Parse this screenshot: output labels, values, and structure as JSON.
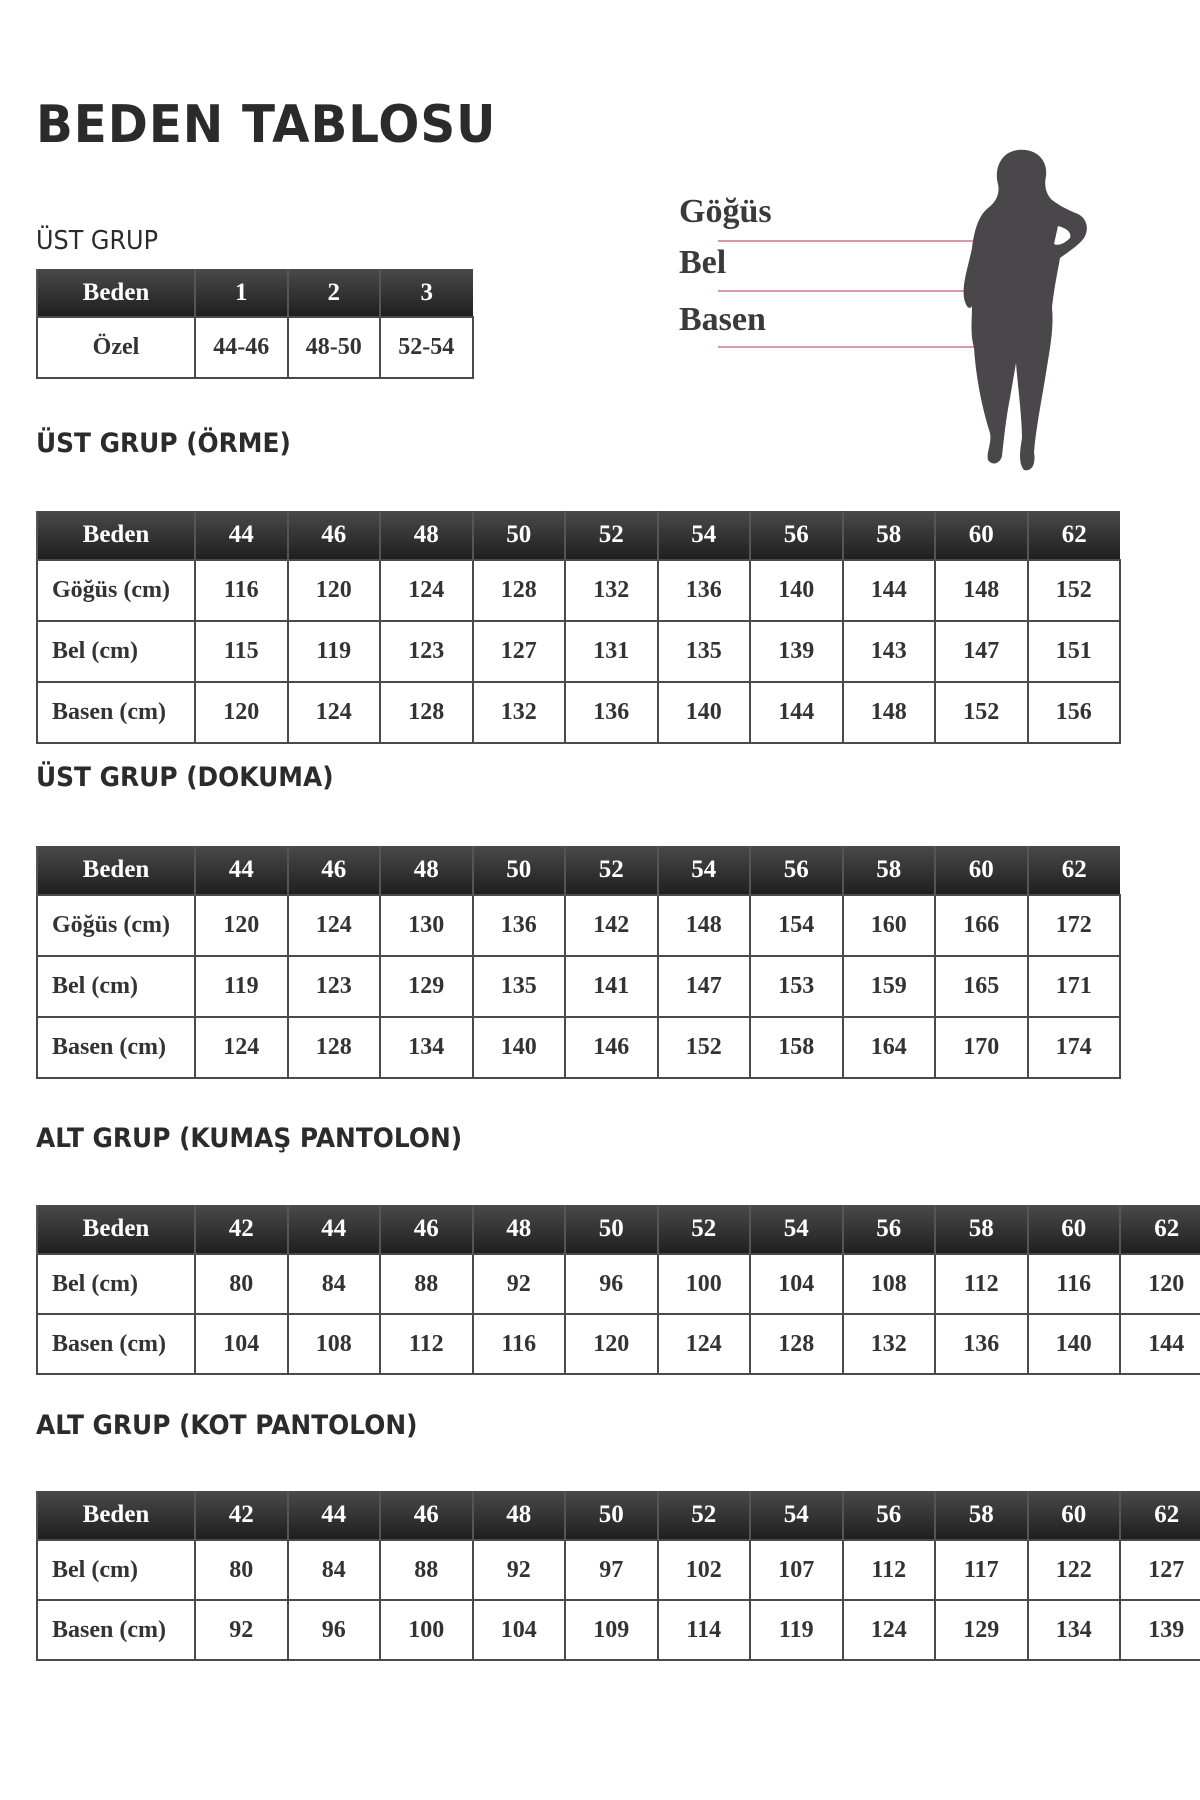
{
  "title": "BEDEN TABLOSU",
  "colors": {
    "header_bg": "#2a2a2a",
    "measure_line": "#d89aa3",
    "silhouette": "#4a474b"
  },
  "figure": {
    "icon": "female-body-silhouette",
    "labels": [
      "Göğüs",
      "Bel",
      "Basen"
    ]
  },
  "tables": [
    {
      "heading": "ÜST GRUP",
      "columns": [
        "Beden",
        "1",
        "2",
        "3"
      ],
      "rows": [
        [
          "Özel",
          "44-46",
          "48-50",
          "52-54"
        ]
      ]
    },
    {
      "heading": "ÜST GRUP (ÖRME)",
      "columns": [
        "Beden",
        "44",
        "46",
        "48",
        "50",
        "52",
        "54",
        "56",
        "58",
        "60",
        "62"
      ],
      "rows": [
        [
          "Göğüs (cm)",
          "116",
          "120",
          "124",
          "128",
          "132",
          "136",
          "140",
          "144",
          "148",
          "152"
        ],
        [
          "Bel (cm)",
          "115",
          "119",
          "123",
          "127",
          "131",
          "135",
          "139",
          "143",
          "147",
          "151"
        ],
        [
          "Basen (cm)",
          "120",
          "124",
          "128",
          "132",
          "136",
          "140",
          "144",
          "148",
          "152",
          "156"
        ]
      ]
    },
    {
      "heading": "ÜST GRUP (DOKUMA)",
      "columns": [
        "Beden",
        "44",
        "46",
        "48",
        "50",
        "52",
        "54",
        "56",
        "58",
        "60",
        "62"
      ],
      "rows": [
        [
          "Göğüs (cm)",
          "120",
          "124",
          "130",
          "136",
          "142",
          "148",
          "154",
          "160",
          "166",
          "172"
        ],
        [
          "Bel (cm)",
          "119",
          "123",
          "129",
          "135",
          "141",
          "147",
          "153",
          "159",
          "165",
          "171"
        ],
        [
          "Basen (cm)",
          "124",
          "128",
          "134",
          "140",
          "146",
          "152",
          "158",
          "164",
          "170",
          "174"
        ]
      ]
    },
    {
      "heading": "ALT GRUP (KUMAŞ PANTOLON)",
      "columns": [
        "Beden",
        "42",
        "44",
        "46",
        "48",
        "50",
        "52",
        "54",
        "56",
        "58",
        "60",
        "62"
      ],
      "rows": [
        [
          "Bel (cm)",
          "80",
          "84",
          "88",
          "92",
          "96",
          "100",
          "104",
          "108",
          "112",
          "116",
          "120"
        ],
        [
          "Basen (cm)",
          "104",
          "108",
          "112",
          "116",
          "120",
          "124",
          "128",
          "132",
          "136",
          "140",
          "144"
        ]
      ]
    },
    {
      "heading": "ALT GRUP (KOT PANTOLON)",
      "columns": [
        "Beden",
        "42",
        "44",
        "46",
        "48",
        "50",
        "52",
        "54",
        "56",
        "58",
        "60",
        "62"
      ],
      "rows": [
        [
          "Bel (cm)",
          "80",
          "84",
          "88",
          "92",
          "97",
          "102",
          "107",
          "112",
          "117",
          "122",
          "127"
        ],
        [
          "Basen (cm)",
          "92",
          "96",
          "100",
          "104",
          "109",
          "114",
          "119",
          "124",
          "129",
          "134",
          "139"
        ]
      ]
    }
  ]
}
